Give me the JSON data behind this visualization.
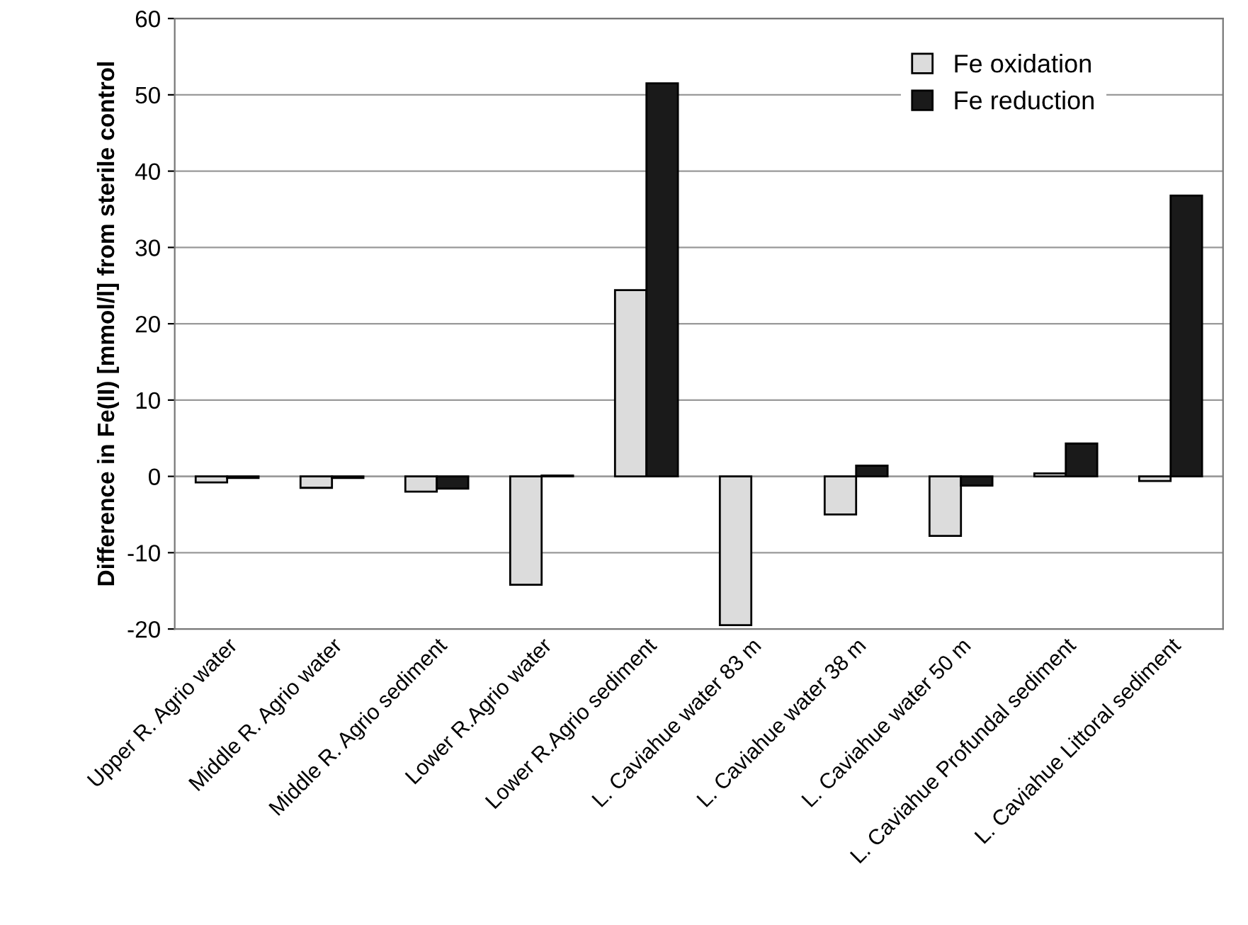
{
  "chart_data": {
    "type": "bar",
    "ylabel": "Difference in Fe(II) [mmol/l] from sterile control",
    "categories": [
      "Upper R. Agrio water",
      "Middle R. Agrio water",
      "Middle R. Agrio sediment",
      "Lower R.Agrio water",
      "Lower R.Agrio sediment",
      "L. Caviahue water 83 m",
      "L. Caviahue water 38 m",
      "L. Caviahue water 50 m",
      "L. Caviahue Profundal sediment",
      "L. Caviahue Littoral sediment"
    ],
    "series": [
      {
        "name": "Fe oxidation",
        "color": "#dcdcdc",
        "values": [
          -0.8,
          -1.5,
          -2.0,
          -14.2,
          24.4,
          -19.5,
          -5.0,
          -7.8,
          0.4,
          -0.6
        ]
      },
      {
        "name": "Fe reduction",
        "color": "#1a1a1a",
        "values": [
          -0.2,
          -0.2,
          -1.6,
          0.1,
          51.5,
          null,
          1.4,
          -1.2,
          4.3,
          36.8
        ]
      }
    ],
    "ylim": [
      -20,
      60
    ],
    "yticks": [
      -20,
      -10,
      0,
      10,
      20,
      30,
      40,
      50,
      60
    ],
    "grid": "y",
    "legend": "top right"
  }
}
